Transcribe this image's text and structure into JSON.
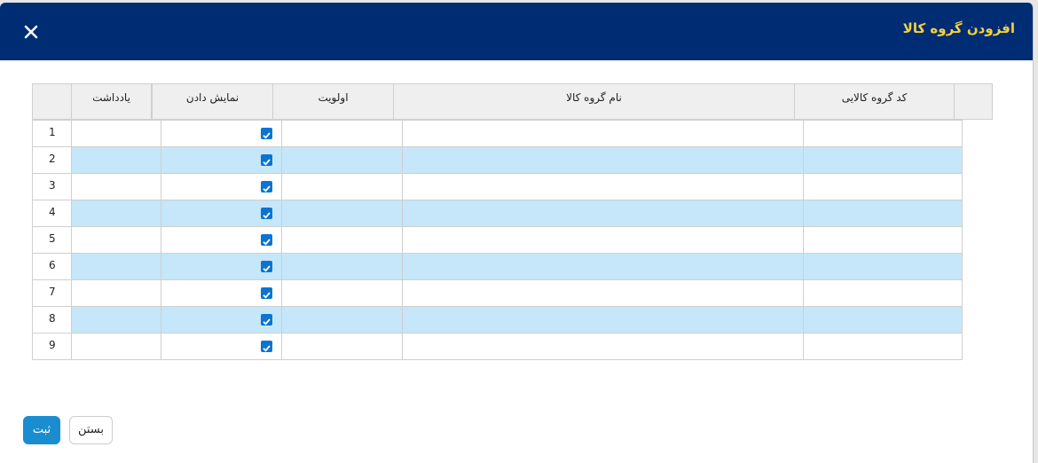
{
  "header": {
    "title": "افزودن گروه کالا"
  },
  "table": {
    "columns": [
      "کد گروه کالایی",
      "نام گروه کالا",
      "اولویت",
      "نمایش دادن",
      "یادداشت"
    ],
    "rows": [
      {
        "number": 1,
        "show": true
      },
      {
        "number": 2,
        "show": true
      },
      {
        "number": 3,
        "show": true
      },
      {
        "number": 4,
        "show": true
      },
      {
        "number": 5,
        "show": true
      },
      {
        "number": 6,
        "show": true
      },
      {
        "number": 7,
        "show": true
      },
      {
        "number": 8,
        "show": true
      },
      {
        "number": 9,
        "show": true
      }
    ]
  },
  "buttons": {
    "submit": "ثبت",
    "close": "بستن"
  }
}
